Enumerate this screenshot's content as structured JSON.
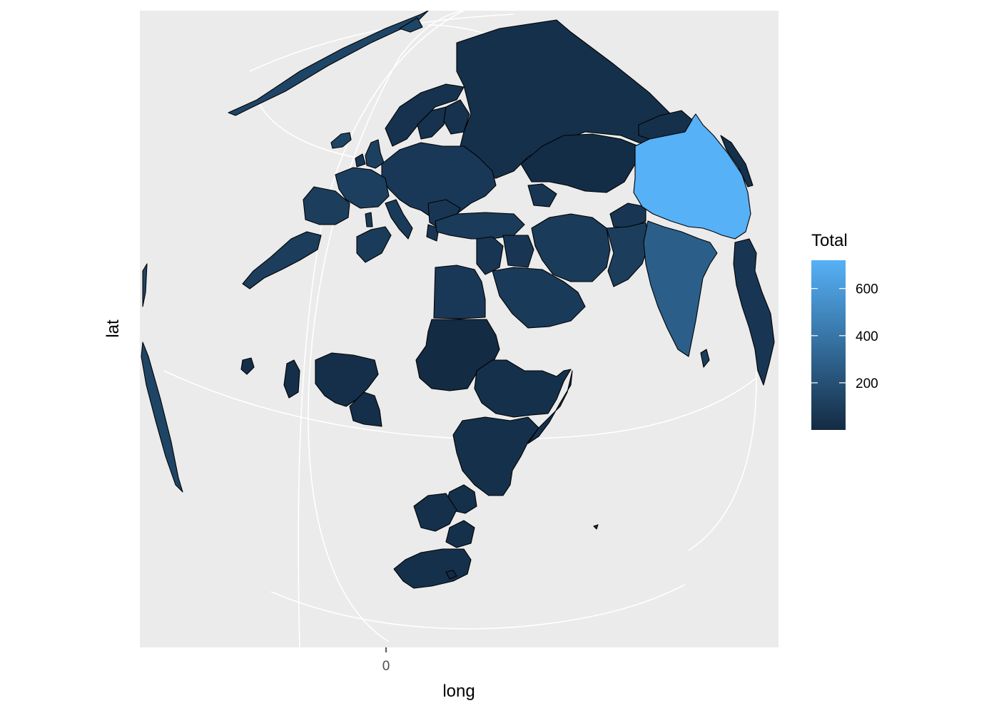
{
  "chart_data": {
    "type": "map",
    "projection": "orthographic",
    "xlabel": "long",
    "ylabel": "lat",
    "x_ticks": [
      "0"
    ],
    "legend": {
      "title": "Total",
      "position": "right",
      "scale": "continuous",
      "range": [
        0,
        720
      ],
      "breaks": [
        200,
        400,
        600
      ],
      "break_labels": [
        "200",
        "400",
        "600"
      ],
      "low_color": "#132B43",
      "high_color": "#56B1F7"
    },
    "panel_background": "#EBEBEB",
    "grid_color": "#FFFFFF",
    "regions": [
      {
        "id": "china",
        "total": 720
      },
      {
        "id": "india",
        "total": 330
      },
      {
        "id": "iceland",
        "total": 160
      },
      {
        "id": "france",
        "total": 120
      },
      {
        "id": "uk",
        "total": 110
      },
      {
        "id": "spain",
        "total": 100
      },
      {
        "id": "morocco",
        "total": 95
      },
      {
        "id": "algeria-west",
        "total": 90
      },
      {
        "id": "turkey",
        "total": 80
      },
      {
        "id": "iran",
        "total": 75
      },
      {
        "id": "pakistan",
        "total": 70
      },
      {
        "id": "europe-central",
        "total": 60
      },
      {
        "id": "italy",
        "total": 60
      },
      {
        "id": "scandinavia",
        "total": 50
      },
      {
        "id": "russia",
        "total": 40
      },
      {
        "id": "kazakhstan",
        "total": 30
      },
      {
        "id": "egypt",
        "total": 40
      },
      {
        "id": "sudan",
        "total": 20
      },
      {
        "id": "saudi-arabia",
        "total": 35
      },
      {
        "id": "ethiopia",
        "total": 25
      },
      {
        "id": "nigeria",
        "total": 25
      },
      {
        "id": "southern-africa",
        "total": 20
      }
    ]
  }
}
